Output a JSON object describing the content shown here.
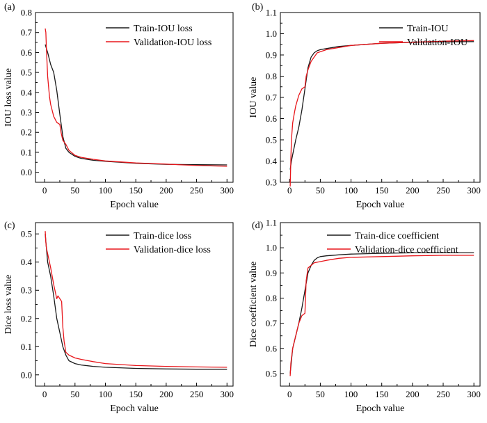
{
  "chart_data": [
    {
      "panel": "(a)",
      "type": "line",
      "xlabel": "Epoch value",
      "ylabel": "IOU loss value",
      "xlim": [
        -15,
        310
      ],
      "ylim": [
        -0.05,
        0.8
      ],
      "xticks": [
        0,
        50,
        100,
        150,
        200,
        250,
        300
      ],
      "yticks": [
        0.0,
        0.1,
        0.2,
        0.3,
        0.4,
        0.5,
        0.6,
        0.7,
        0.8
      ],
      "legend": "top-right",
      "series": [
        {
          "name": "Train-IOU loss",
          "color": "#1a1a1a",
          "x": [
            1,
            3,
            5,
            10,
            15,
            20,
            25,
            30,
            35,
            40,
            50,
            60,
            80,
            100,
            150,
            200,
            250,
            300
          ],
          "y": [
            0.64,
            0.62,
            0.6,
            0.54,
            0.5,
            0.41,
            0.29,
            0.18,
            0.12,
            0.1,
            0.08,
            0.07,
            0.06,
            0.055,
            0.045,
            0.04,
            0.038,
            0.037
          ]
        },
        {
          "name": "Validation-IOU loss",
          "color": "#e8161b",
          "x": [
            1,
            2,
            3,
            5,
            8,
            10,
            15,
            20,
            25,
            27,
            30,
            35,
            40,
            50,
            60,
            80,
            100,
            150,
            200,
            250,
            300
          ],
          "y": [
            0.72,
            0.7,
            0.62,
            0.48,
            0.38,
            0.34,
            0.28,
            0.25,
            0.24,
            0.2,
            0.16,
            0.14,
            0.11,
            0.085,
            0.075,
            0.065,
            0.057,
            0.047,
            0.041,
            0.034,
            0.03
          ]
        }
      ]
    },
    {
      "panel": "(b)",
      "type": "line",
      "xlabel": "Epoch value",
      "ylabel": "IOU value",
      "xlim": [
        -15,
        310
      ],
      "ylim": [
        0.3,
        1.1
      ],
      "xticks": [
        0,
        50,
        100,
        150,
        200,
        250,
        300
      ],
      "yticks": [
        0.3,
        0.4,
        0.5,
        0.6,
        0.7,
        0.8,
        0.9,
        1.0,
        1.1
      ],
      "legend": "top-right",
      "series": [
        {
          "name": "Train-IOU",
          "color": "#1a1a1a",
          "x": [
            1,
            3,
            5,
            10,
            15,
            20,
            25,
            30,
            35,
            40,
            45,
            50,
            60,
            80,
            100,
            150,
            200,
            250,
            300
          ],
          "y": [
            0.36,
            0.4,
            0.43,
            0.5,
            0.56,
            0.64,
            0.74,
            0.84,
            0.89,
            0.91,
            0.92,
            0.925,
            0.93,
            0.94,
            0.945,
            0.955,
            0.96,
            0.962,
            0.963
          ]
        },
        {
          "name": "Validation-IOU",
          "color": "#e8161b",
          "x": [
            1,
            2,
            3,
            5,
            8,
            10,
            15,
            20,
            25,
            27,
            30,
            35,
            40,
            45,
            50,
            60,
            80,
            100,
            150,
            200,
            250,
            300
          ],
          "y": [
            0.28,
            0.4,
            0.5,
            0.58,
            0.63,
            0.66,
            0.71,
            0.74,
            0.75,
            0.8,
            0.83,
            0.87,
            0.89,
            0.91,
            0.915,
            0.925,
            0.935,
            0.945,
            0.955,
            0.96,
            0.965,
            0.968
          ]
        }
      ]
    },
    {
      "panel": "(c)",
      "type": "line",
      "xlabel": "Epoch value",
      "ylabel": "Dice loss value",
      "xlim": [
        -15,
        310
      ],
      "ylim": [
        -0.04,
        0.54
      ],
      "xticks": [
        0,
        50,
        100,
        150,
        200,
        250,
        300
      ],
      "yticks": [
        0.0,
        0.1,
        0.2,
        0.3,
        0.4,
        0.5
      ],
      "legend": "top-right",
      "series": [
        {
          "name": "Train-dice loss",
          "color": "#1a1a1a",
          "x": [
            1,
            3,
            5,
            10,
            15,
            20,
            25,
            30,
            35,
            40,
            50,
            60,
            80,
            100,
            150,
            200,
            250,
            300
          ],
          "y": [
            0.5,
            0.45,
            0.4,
            0.35,
            0.28,
            0.2,
            0.15,
            0.1,
            0.07,
            0.05,
            0.04,
            0.035,
            0.03,
            0.027,
            0.023,
            0.021,
            0.02,
            0.02
          ]
        },
        {
          "name": "Validation-dice loss",
          "color": "#e8161b",
          "x": [
            1,
            2,
            3,
            5,
            10,
            15,
            20,
            22,
            25,
            28,
            30,
            32,
            35,
            40,
            50,
            60,
            80,
            100,
            150,
            200,
            250,
            300
          ],
          "y": [
            0.51,
            0.47,
            0.45,
            0.43,
            0.38,
            0.32,
            0.27,
            0.28,
            0.27,
            0.26,
            0.17,
            0.12,
            0.08,
            0.07,
            0.06,
            0.055,
            0.047,
            0.04,
            0.033,
            0.03,
            0.028,
            0.027
          ]
        }
      ]
    },
    {
      "panel": "(d)",
      "type": "line",
      "xlabel": "Epoch value",
      "ylabel": "Dice coefficient value",
      "xlim": [
        -15,
        310
      ],
      "ylim": [
        0.45,
        1.1
      ],
      "xticks": [
        0,
        50,
        100,
        150,
        200,
        250,
        300
      ],
      "yticks": [
        0.5,
        0.6,
        0.7,
        0.8,
        0.9,
        1.0,
        1.1
      ],
      "legend": "top-right",
      "series": [
        {
          "name": "Train-dice coefficient",
          "color": "#1a1a1a",
          "x": [
            1,
            3,
            5,
            10,
            15,
            20,
            25,
            30,
            35,
            40,
            45,
            50,
            60,
            80,
            100,
            150,
            200,
            250,
            300
          ],
          "y": [
            0.5,
            0.55,
            0.6,
            0.65,
            0.7,
            0.76,
            0.83,
            0.9,
            0.93,
            0.95,
            0.96,
            0.965,
            0.968,
            0.972,
            0.975,
            0.978,
            0.98,
            0.98,
            0.98
          ]
        },
        {
          "name": "Validation-dice coefficient",
          "color": "#e8161b",
          "x": [
            1,
            2,
            3,
            5,
            8,
            10,
            15,
            20,
            25,
            27,
            30,
            35,
            40,
            50,
            60,
            80,
            100,
            150,
            200,
            250,
            300
          ],
          "y": [
            0.49,
            0.54,
            0.56,
            0.6,
            0.63,
            0.65,
            0.7,
            0.73,
            0.74,
            0.87,
            0.92,
            0.93,
            0.94,
            0.945,
            0.95,
            0.958,
            0.962,
            0.965,
            0.968,
            0.97,
            0.97
          ]
        }
      ]
    }
  ]
}
